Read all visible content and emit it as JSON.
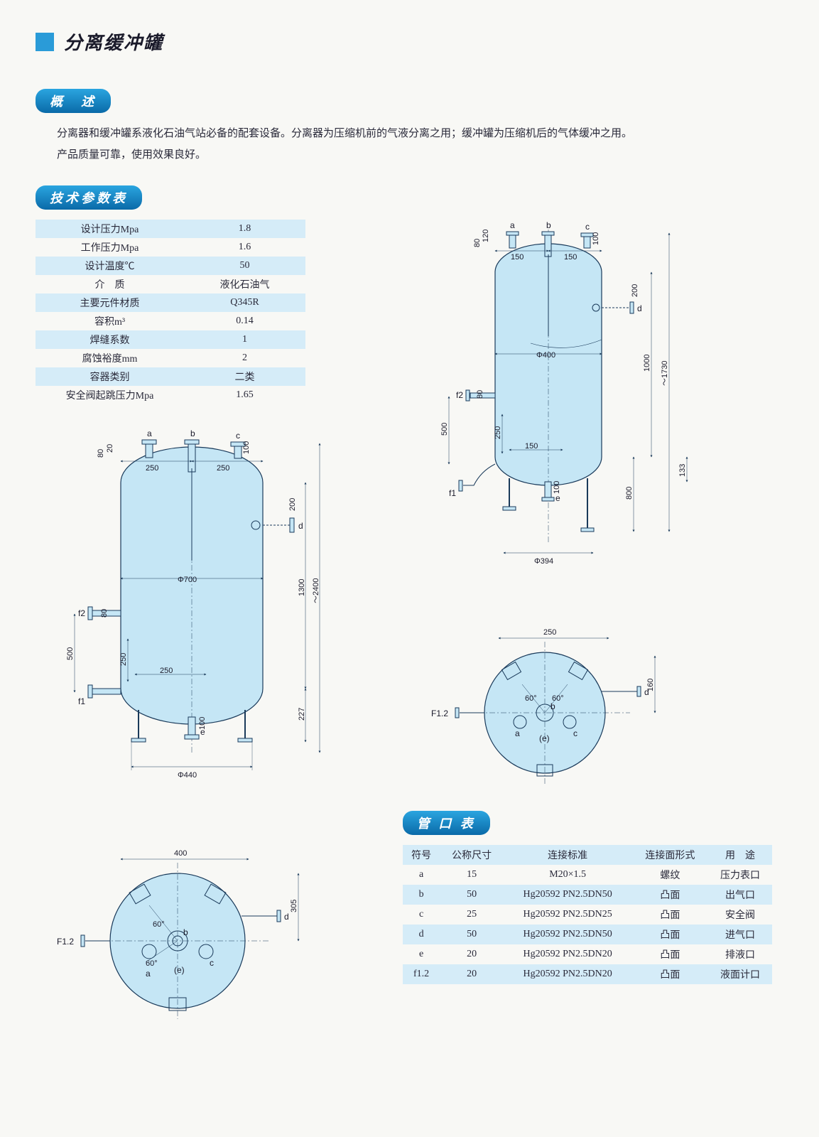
{
  "title": "分离缓冲罐",
  "sections": {
    "overview_header": "概　述",
    "overview_p1": "分离器和缓冲罐系液化石油气站必备的配套设备。分离器为压缩机前的气液分离之用；缓冲罐为压缩机后的气体缓冲之用。",
    "overview_p2": "产品质量可靠，使用效果良好。",
    "spec_header": "技术参数表",
    "port_header": "管 口 表"
  },
  "specs": [
    {
      "label": "设计压力Mpa",
      "value": "1.8"
    },
    {
      "label": "工作压力Mpa",
      "value": "1.6"
    },
    {
      "label": "设计温度℃",
      "value": "50"
    },
    {
      "label": "介　质",
      "value": "液化石油气"
    },
    {
      "label": "主要元件材质",
      "value": "Q345R"
    },
    {
      "label": "容积m³",
      "value": "0.14"
    },
    {
      "label": "焊缝系数",
      "value": "1"
    },
    {
      "label": "腐蚀裕度mm",
      "value": "2"
    },
    {
      "label": "容器类别",
      "value": "二类"
    },
    {
      "label": "安全阀起跳压力Mpa",
      "value": "1.65"
    }
  ],
  "port_columns": [
    "符号",
    "公称尺寸",
    "连接标准",
    "连接面形式",
    "用　途"
  ],
  "ports": [
    {
      "sym": "a",
      "size": "15",
      "std": "M20×1.5",
      "face": "螺纹",
      "use": "压力表口"
    },
    {
      "sym": "b",
      "size": "50",
      "std": "Hg20592  PN2.5DN50",
      "face": "凸面",
      "use": "出气口"
    },
    {
      "sym": "c",
      "size": "25",
      "std": "Hg20592  PN2.5DN25",
      "face": "凸面",
      "use": "安全阀"
    },
    {
      "sym": "d",
      "size": "50",
      "std": "Hg20592  PN2.5DN50",
      "face": "凸面",
      "use": "进气口"
    },
    {
      "sym": "e",
      "size": "20",
      "std": "Hg20592  PN2.5DN20",
      "face": "凸面",
      "use": "排液口"
    },
    {
      "sym": "f1.2",
      "size": "20",
      "std": "Hg20592  PN2.5DN20",
      "face": "凸面",
      "use": "液面计口"
    }
  ],
  "diagrams": {
    "tank_large": {
      "body_width": 200,
      "body_height": 400,
      "dome_r": 100,
      "fill": "#c5e6f5",
      "stroke": "#1a3a5a",
      "stroke_w": 1.2,
      "dia_label": "Φ700",
      "dims": {
        "top_80": "80",
        "top_20": "20",
        "top_250l": "250",
        "top_250r": "250",
        "top_100": "100",
        "side_200": "200",
        "side_80": "80",
        "h500": "500",
        "h250l": "250",
        "h250": "250",
        "h100": "100",
        "h1300": "1300",
        "h2400": "～2400",
        "h227": "227",
        "base": "Φ440"
      },
      "ports": [
        "a",
        "b",
        "c",
        "d",
        "e",
        "f1",
        "f2"
      ]
    },
    "tank_small": {
      "body_width": 150,
      "body_height": 320,
      "dome_r": 75,
      "fill": "#c5e6f5",
      "stroke": "#1a3a5a",
      "stroke_w": 1.2,
      "dia_label": "Φ400",
      "dims": {
        "top_80": "80",
        "top_120": "120",
        "top_150l": "150",
        "top_150r": "150",
        "top_100": "100",
        "side_200": "200",
        "side_80": "80",
        "h500": "500",
        "h250l": "250",
        "h150": "150",
        "h100": "100",
        "h1000": "1000",
        "h1730": "～1730",
        "h133": "133",
        "h800": "800",
        "base": "Φ394"
      },
      "ports": [
        "a",
        "b",
        "c",
        "d",
        "e",
        "f1",
        "f2"
      ]
    },
    "top_large": {
      "dia": 200,
      "fill": "#c5e6f5",
      "stroke": "#1a3a5a",
      "angle": "60°",
      "w": "400",
      "h": "305",
      "label_f": "F1.2",
      "label_e": "(e)",
      "ports": [
        "a",
        "b",
        "c",
        "d"
      ]
    },
    "top_small": {
      "dia": 180,
      "fill": "#c5e6f5",
      "stroke": "#1a3a5a",
      "angle": "60°",
      "w": "250",
      "h": "160",
      "label_f": "F1.2",
      "label_e": "(e)",
      "ports": [
        "a",
        "b",
        "c",
        "d"
      ]
    }
  },
  "colors": {
    "accent": "#2a9bd8",
    "pill_top": "#2aa5e0",
    "pill_bot": "#0a6aa8",
    "row_bg": "#d5ecf8",
    "tank_fill": "#c5e6f5",
    "stroke": "#1a3a5a"
  }
}
